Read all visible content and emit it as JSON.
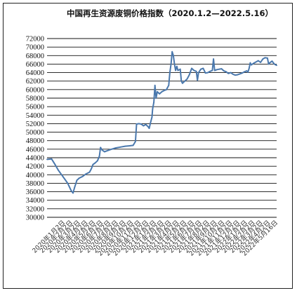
{
  "chart_data": {
    "type": "line",
    "title": "中国再生资源废铜价格指数（2020.1.2—2022.5.16）",
    "ylim": [
      30000,
      72000
    ],
    "y_ticks": [
      "30000",
      "32000",
      "34000",
      "36000",
      "38000",
      "40000",
      "42000",
      "44000",
      "46000",
      "48000",
      "50000",
      "52000",
      "54000",
      "56000",
      "58000",
      "60000",
      "62000",
      "64000",
      "66000",
      "68000",
      "70000",
      "72000"
    ],
    "grid": "horizontal",
    "x_tick_labels": [
      "2020年1月2日",
      "2020年2月2日",
      "2020年3月2日",
      "2020年4月2日",
      "2020年5月2日",
      "2020年6月2日",
      "2020年7月2日",
      "2020年8月2日",
      "2020年9月2日",
      "2020年10月2日",
      "2020年11月2日",
      "2020年12月2日",
      "2021年1月2日",
      "2021年2月2日",
      "2021年3月2日",
      "2021年4月2日",
      "2021年5月2日",
      "2021年6月2日",
      "2021年7月2日",
      "2021年8月2日",
      "2021年9月2日",
      "2021年10月2日",
      "2021年11月2日",
      "2021年12月2日",
      "2022年1月2日",
      "2022年2月2日",
      "2022年3月2日",
      "2022年4月2日",
      "2022年5月16日"
    ],
    "series": [
      {
        "color": "#4a78ad",
        "points": [
          [
            0.0,
            43600
          ],
          [
            0.02,
            43700
          ],
          [
            0.035,
            42400
          ],
          [
            0.05,
            41000
          ],
          [
            0.07,
            39500
          ],
          [
            0.09,
            38000
          ],
          [
            0.105,
            36300
          ],
          [
            0.113,
            35700
          ],
          [
            0.12,
            37000
          ],
          [
            0.13,
            38700
          ],
          [
            0.14,
            39200
          ],
          [
            0.155,
            39600
          ],
          [
            0.17,
            40200
          ],
          [
            0.185,
            40600
          ],
          [
            0.193,
            41400
          ],
          [
            0.2,
            42400
          ],
          [
            0.21,
            42800
          ],
          [
            0.22,
            43300
          ],
          [
            0.228,
            44400
          ],
          [
            0.233,
            46400
          ],
          [
            0.24,
            45800
          ],
          [
            0.25,
            45400
          ],
          [
            0.265,
            45700
          ],
          [
            0.28,
            46000
          ],
          [
            0.3,
            46300
          ],
          [
            0.32,
            46500
          ],
          [
            0.34,
            46700
          ],
          [
            0.36,
            46800
          ],
          [
            0.375,
            46900
          ],
          [
            0.385,
            47800
          ],
          [
            0.39,
            51900
          ],
          [
            0.4,
            52000
          ],
          [
            0.41,
            51900
          ],
          [
            0.42,
            51500
          ],
          [
            0.43,
            51800
          ],
          [
            0.44,
            51300
          ],
          [
            0.445,
            50900
          ],
          [
            0.45,
            52100
          ],
          [
            0.457,
            53500
          ],
          [
            0.46,
            55500
          ],
          [
            0.465,
            57000
          ],
          [
            0.47,
            61000
          ],
          [
            0.475,
            58000
          ],
          [
            0.48,
            59500
          ],
          [
            0.49,
            59000
          ],
          [
            0.5,
            59500
          ],
          [
            0.51,
            59800
          ],
          [
            0.52,
            60000
          ],
          [
            0.53,
            61000
          ],
          [
            0.535,
            64000
          ],
          [
            0.54,
            66000
          ],
          [
            0.545,
            68900
          ],
          [
            0.55,
            68000
          ],
          [
            0.555,
            66000
          ],
          [
            0.56,
            64500
          ],
          [
            0.565,
            65500
          ],
          [
            0.57,
            64500
          ],
          [
            0.58,
            64800
          ],
          [
            0.585,
            62000
          ],
          [
            0.59,
            61500
          ],
          [
            0.6,
            62000
          ],
          [
            0.61,
            62500
          ],
          [
            0.62,
            63500
          ],
          [
            0.63,
            65000
          ],
          [
            0.64,
            64500
          ],
          [
            0.65,
            64300
          ],
          [
            0.655,
            62200
          ],
          [
            0.66,
            64000
          ],
          [
            0.67,
            64800
          ],
          [
            0.68,
            65000
          ],
          [
            0.69,
            63900
          ],
          [
            0.7,
            64000
          ],
          [
            0.71,
            64300
          ],
          [
            0.72,
            64500
          ],
          [
            0.725,
            67200
          ],
          [
            0.73,
            64500
          ],
          [
            0.74,
            64700
          ],
          [
            0.75,
            64800
          ],
          [
            0.76,
            64900
          ],
          [
            0.77,
            64400
          ],
          [
            0.78,
            64200
          ],
          [
            0.79,
            63800
          ],
          [
            0.8,
            64000
          ],
          [
            0.81,
            63600
          ],
          [
            0.82,
            63400
          ],
          [
            0.83,
            63500
          ],
          [
            0.84,
            63700
          ],
          [
            0.85,
            63900
          ],
          [
            0.86,
            64200
          ],
          [
            0.87,
            64400
          ],
          [
            0.875,
            64100
          ],
          [
            0.88,
            65000
          ],
          [
            0.885,
            66300
          ],
          [
            0.89,
            65800
          ],
          [
            0.9,
            66200
          ],
          [
            0.91,
            66500
          ],
          [
            0.92,
            66800
          ],
          [
            0.93,
            66400
          ],
          [
            0.94,
            67200
          ],
          [
            0.95,
            67500
          ],
          [
            0.96,
            67400
          ],
          [
            0.965,
            66000
          ],
          [
            0.97,
            66300
          ],
          [
            0.98,
            66700
          ],
          [
            0.99,
            66000
          ],
          [
            1.0,
            65700
          ]
        ]
      }
    ]
  }
}
